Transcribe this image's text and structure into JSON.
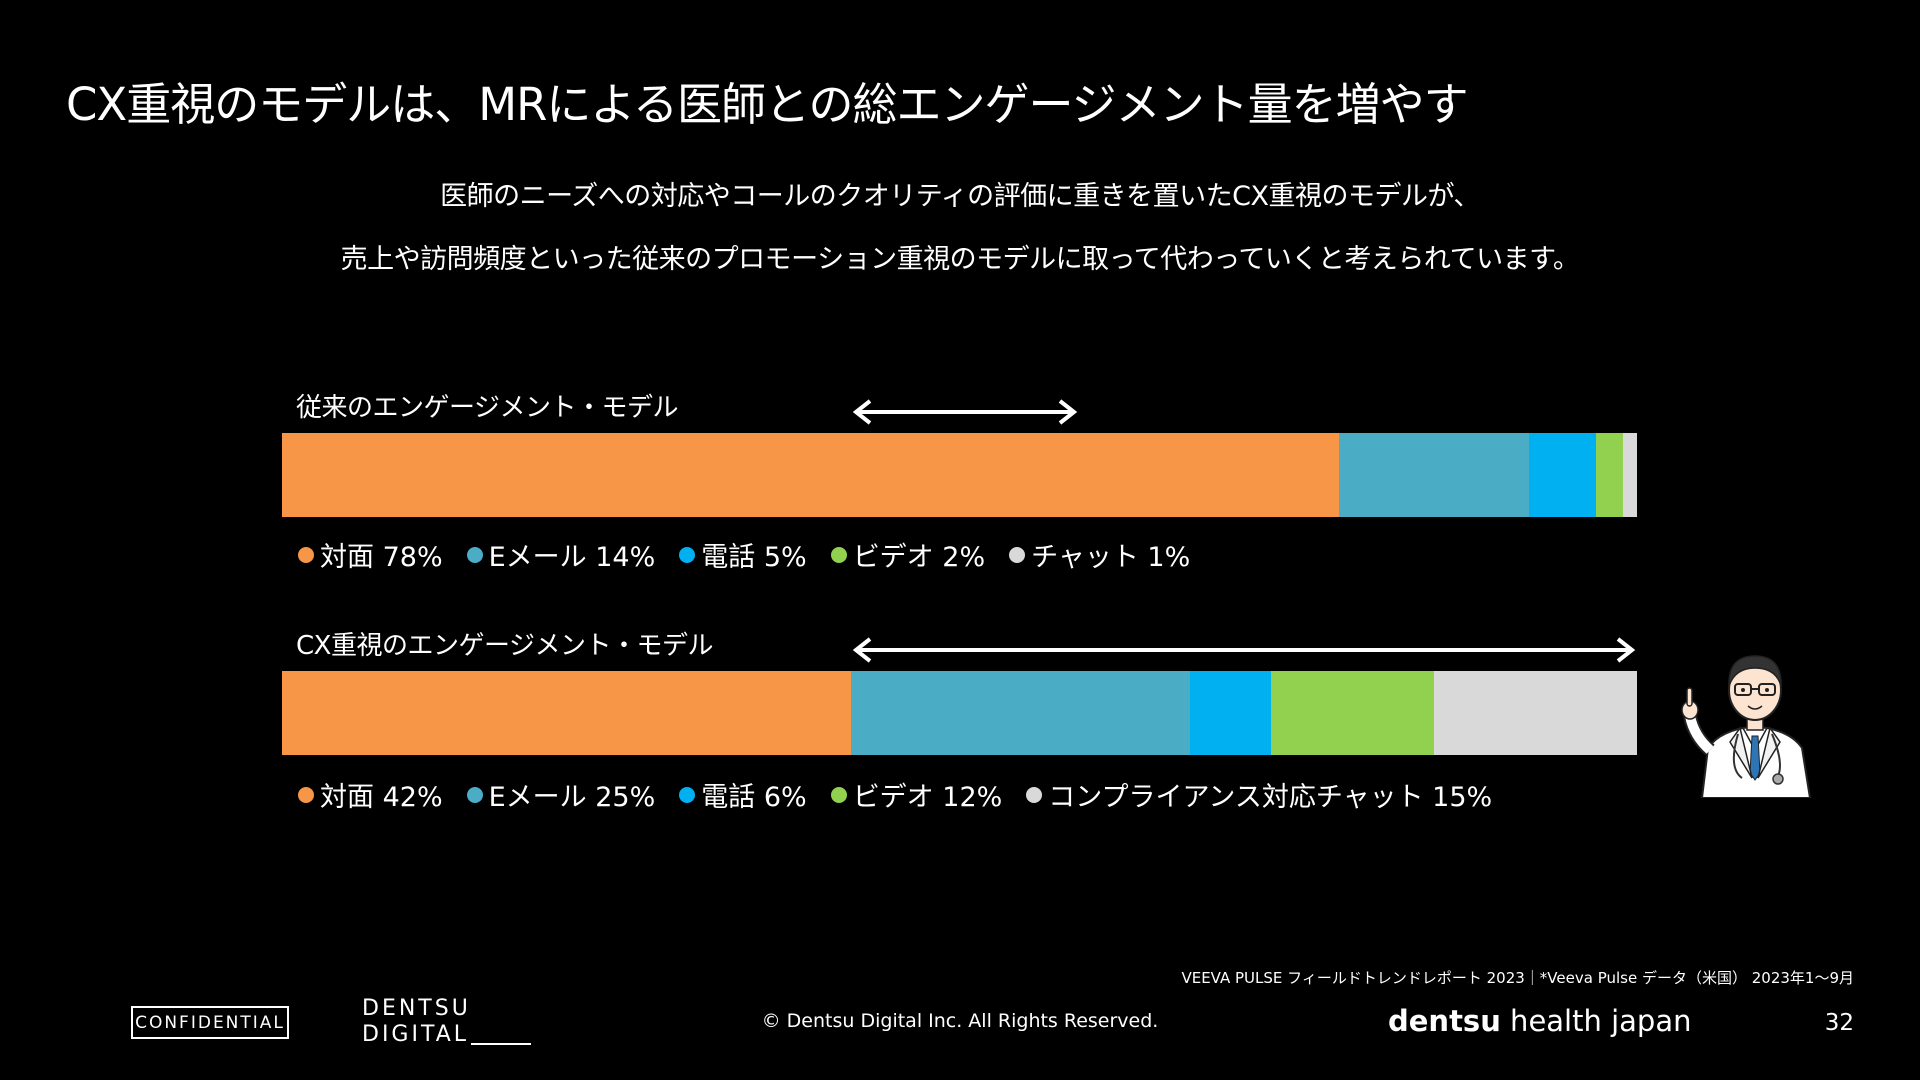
{
  "title": "CX重視のモデルは、MRによる医師との総エンゲージメント量を増やす",
  "subtitle": {
    "line1": "医師のニーズへの対応やコールのクオリティの評価に重きを置いたCX重視のモデルが、",
    "line2": "売上や訪問頻度といった従来のプロモーション重視のモデルに取って代わっていくと考えられています。"
  },
  "chart_data": [
    {
      "type": "bar",
      "title": "従来のエンゲージメント・モデル",
      "orientation": "horizontal-stacked",
      "categories": [
        "対面",
        "Eメール",
        "電話",
        "ビデオ",
        "チャット"
      ],
      "values": [
        78,
        14,
        5,
        2,
        1
      ],
      "unit": "%",
      "legend_labels": [
        "対面 78%",
        "Eメール 14%",
        "電話 5%",
        "ビデオ 2%",
        "チャット 1%"
      ],
      "colors": [
        "#F79646",
        "#4BACC6",
        "#00B0F0",
        "#92D050",
        "#D9D9D9"
      ]
    },
    {
      "type": "bar",
      "title": "CX重視のエンゲージメント・モデル",
      "orientation": "horizontal-stacked",
      "categories": [
        "対面",
        "Eメール",
        "電話",
        "ビデオ",
        "コンプライアンス対応チャット"
      ],
      "values": [
        42,
        25,
        6,
        12,
        15
      ],
      "unit": "%",
      "legend_labels": [
        "対面 42%",
        "Eメール 25%",
        "電話 6%",
        "ビデオ 12%",
        "コンプライアンス対応チャット 15%"
      ],
      "colors": [
        "#F79646",
        "#4BACC6",
        "#00B0F0",
        "#92D050",
        "#D9D9D9"
      ]
    }
  ],
  "source": "VEEVA PULSE フィールドトレンドレポート 2023｜*Veeva Pulse データ（米国） 2023年1～9月",
  "footer": {
    "confidential": "CONFIDENTIAL",
    "logo_line1": "DENTSU",
    "logo_line2": "DIGITAL",
    "copyright": "© Dentsu Digital Inc. All Rights Reserved.",
    "brand_bold": "dentsu",
    "brand_rest": " health japan",
    "page_number": "32"
  },
  "icons": [
    "doctor-illustration",
    "double-arrow-icon"
  ]
}
